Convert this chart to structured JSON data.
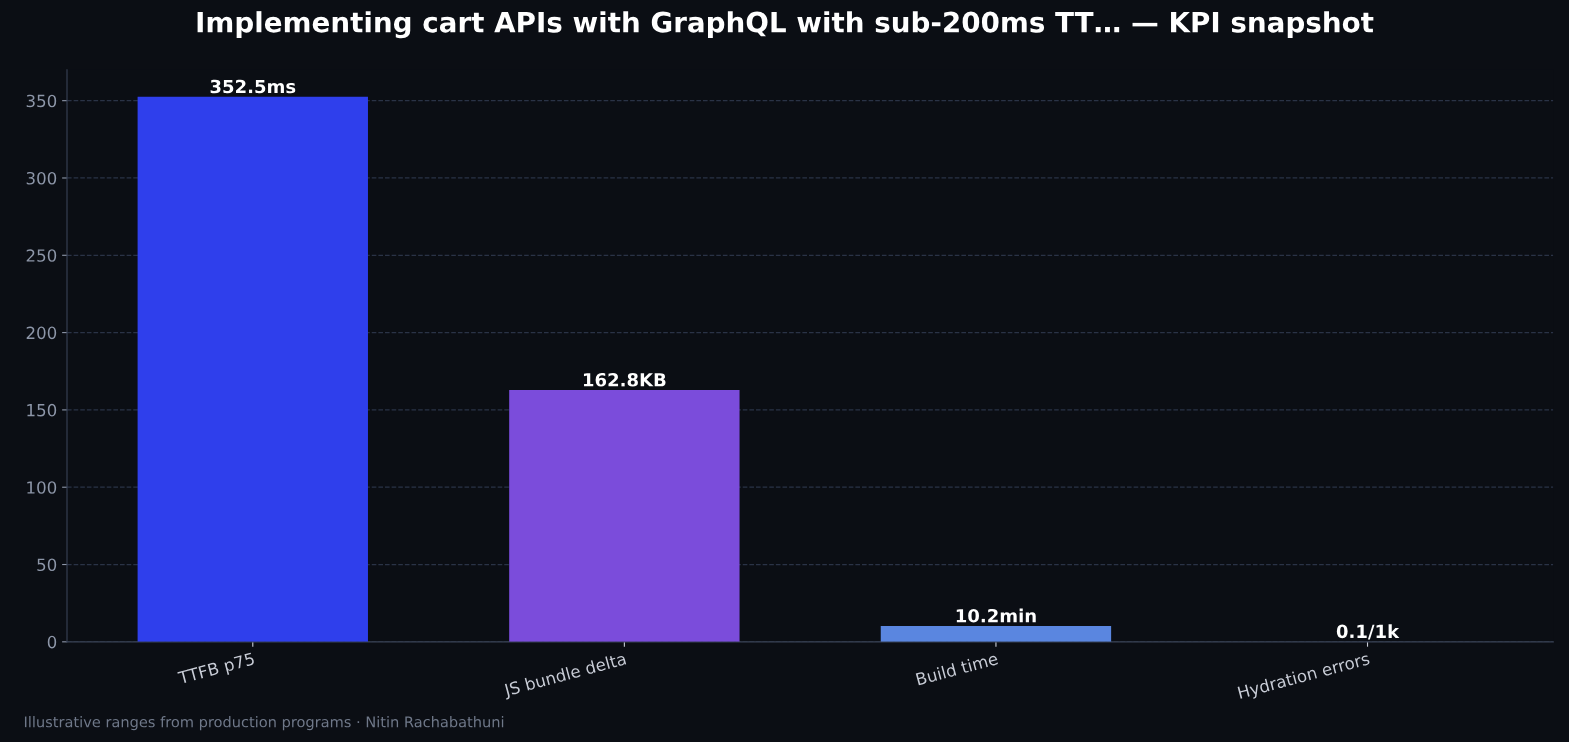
{
  "chart_data": {
    "type": "bar",
    "title": "Implementing cart APIs with GraphQL with sub-200ms TT… — KPI snapshot",
    "categories": [
      "TTFB p75",
      "JS bundle delta",
      "Build time",
      "Hydration errors"
    ],
    "values": [
      352.5,
      162.8,
      10.2,
      0.1
    ],
    "colors": [
      "#2f3fec",
      "#7b4cdb",
      "#5a86e0",
      "#4fc3c8"
    ],
    "value_labels": [
      "352.5ms",
      "162.8KB",
      "10.2min",
      "0.1/1k"
    ],
    "ylim": [
      0,
      370
    ],
    "yticks": [
      0,
      50,
      100,
      150,
      200,
      250,
      300,
      350
    ],
    "grid": "y",
    "legend": false,
    "annotations": [
      "Illustrative ranges from production programs · Nitin Rachabathuni"
    ]
  }
}
